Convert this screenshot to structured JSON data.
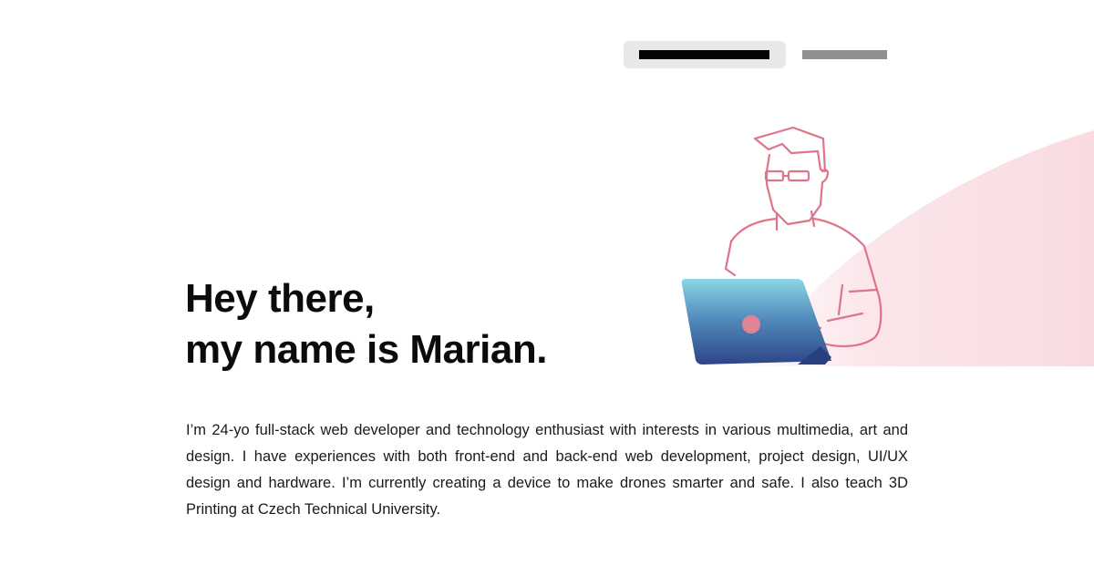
{
  "nav": {
    "items": [
      {
        "label": "",
        "state": "active"
      },
      {
        "label": "",
        "state": "inactive"
      }
    ]
  },
  "hero": {
    "headline_line1": "Hey there,",
    "headline_line2": "my name is Marian.",
    "bio": "I’m 24-yo full-stack web developer and technology enthusiast with interests in various multimedia, art and design. I have experiences with both front-end and back-end web development, project design, UI/UX design and hardware. I’m currently creating a device to make drones smarter and safe. I also teach 3D Printing at Czech Technical University."
  },
  "illustration": {
    "icon": "developer-with-laptop-icon"
  },
  "colors": {
    "accent_pink": "#e07a8f",
    "background_blush": "#f9dde3",
    "laptop_top": "#86d3e3",
    "laptop_bottom": "#2e4a8c",
    "text": "#0b0b0b",
    "nav_active_bg": "#e8e8e8",
    "nav_inactive": "#8f8f8f"
  }
}
